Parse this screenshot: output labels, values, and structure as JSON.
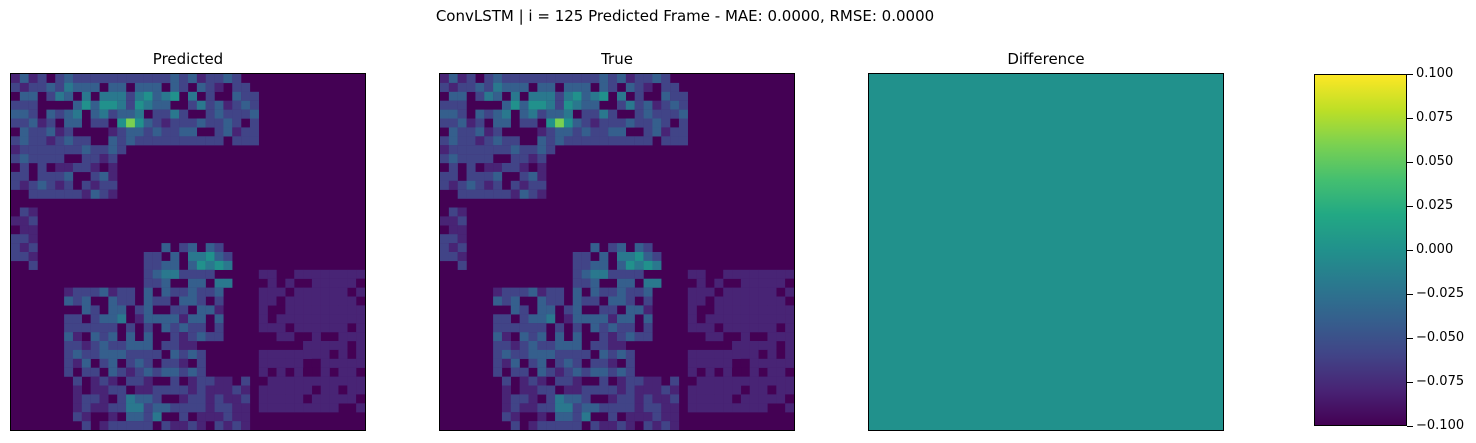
{
  "figure": {
    "suptitle": "ConvLSTM | i = 125 Predicted Frame - MAE: 0.0000, RMSE: 0.0000"
  },
  "colors": {
    "viridis": [
      "#440154",
      "#482475",
      "#414487",
      "#355f8d",
      "#2a788e",
      "#21918c",
      "#22a884",
      "#44bf70",
      "#7ad151",
      "#bddf26",
      "#fde725"
    ],
    "difference_fill": "#21918c"
  },
  "chart_data": [
    {
      "type": "heatmap",
      "title": "Predicted",
      "colormap": "viridis",
      "grid_size": [
        40,
        40
      ],
      "value_range": [
        0,
        1
      ],
      "regions": [
        {
          "rows": [
            0,
            8
          ],
          "cols": [
            0,
            28
          ],
          "value": 0.22
        },
        {
          "rows": [
            1,
            5
          ],
          "cols": [
            3,
            23
          ],
          "value": 0.3
        },
        {
          "rows": [
            2,
            4
          ],
          "cols": [
            5,
            20
          ],
          "value": 0.38
        },
        {
          "rows": [
            5,
            14
          ],
          "cols": [
            0,
            12
          ],
          "value": 0.2
        },
        {
          "rows": [
            7,
            9
          ],
          "cols": [
            8,
            13
          ],
          "value": 0.28
        },
        {
          "rows": [
            13,
            15
          ],
          "cols": [
            7,
            8
          ],
          "value": 0.25
        },
        {
          "rows": [
            15,
            22
          ],
          "cols": [
            0,
            3
          ],
          "value": 0.15
        },
        {
          "rows": [
            20,
            30
          ],
          "cols": [
            15,
            24
          ],
          "value": 0.24
        },
        {
          "rows": [
            24,
            34
          ],
          "cols": [
            6,
            22
          ],
          "value": 0.22
        },
        {
          "rows": [
            25,
            28
          ],
          "cols": [
            9,
            14
          ],
          "value": 0.3
        },
        {
          "rows": [
            19,
            24
          ],
          "cols": [
            17,
            25
          ],
          "value": 0.3
        },
        {
          "rows": [
            20,
            22
          ],
          "cols": [
            21,
            24
          ],
          "value": 0.42
        },
        {
          "rows": [
            22,
            38
          ],
          "cols": [
            28,
            40
          ],
          "value": 0.08
        },
        {
          "rows": [
            34,
            40
          ],
          "cols": [
            7,
            27
          ],
          "value": 0.16
        },
        {
          "rows": [
            36,
            39
          ],
          "cols": [
            13,
            18
          ],
          "value": 0.32
        }
      ],
      "hotspots": [
        {
          "row": 5,
          "col": 13,
          "value": 0.78
        },
        {
          "row": 5,
          "col": 12,
          "value": 0.5
        },
        {
          "row": 5,
          "col": 14,
          "value": 0.45
        }
      ]
    },
    {
      "type": "heatmap",
      "title": "True",
      "colormap": "viridis",
      "grid_size": [
        40,
        40
      ],
      "value_range": [
        0,
        1
      ],
      "same_as": "Predicted"
    },
    {
      "type": "heatmap",
      "title": "Difference",
      "colormap": "viridis",
      "uniform_value": 0.0,
      "colorbar": {
        "range": [
          -0.1,
          0.1
        ],
        "ticks": [
          0.1,
          0.075,
          0.05,
          0.025,
          0.0,
          -0.025,
          -0.05,
          -0.075,
          -0.1
        ],
        "tick_labels": [
          "0.100",
          "0.075",
          "0.050",
          "0.025",
          "0.000",
          "−0.025",
          "−0.050",
          "−0.075",
          "−0.100"
        ]
      }
    }
  ]
}
